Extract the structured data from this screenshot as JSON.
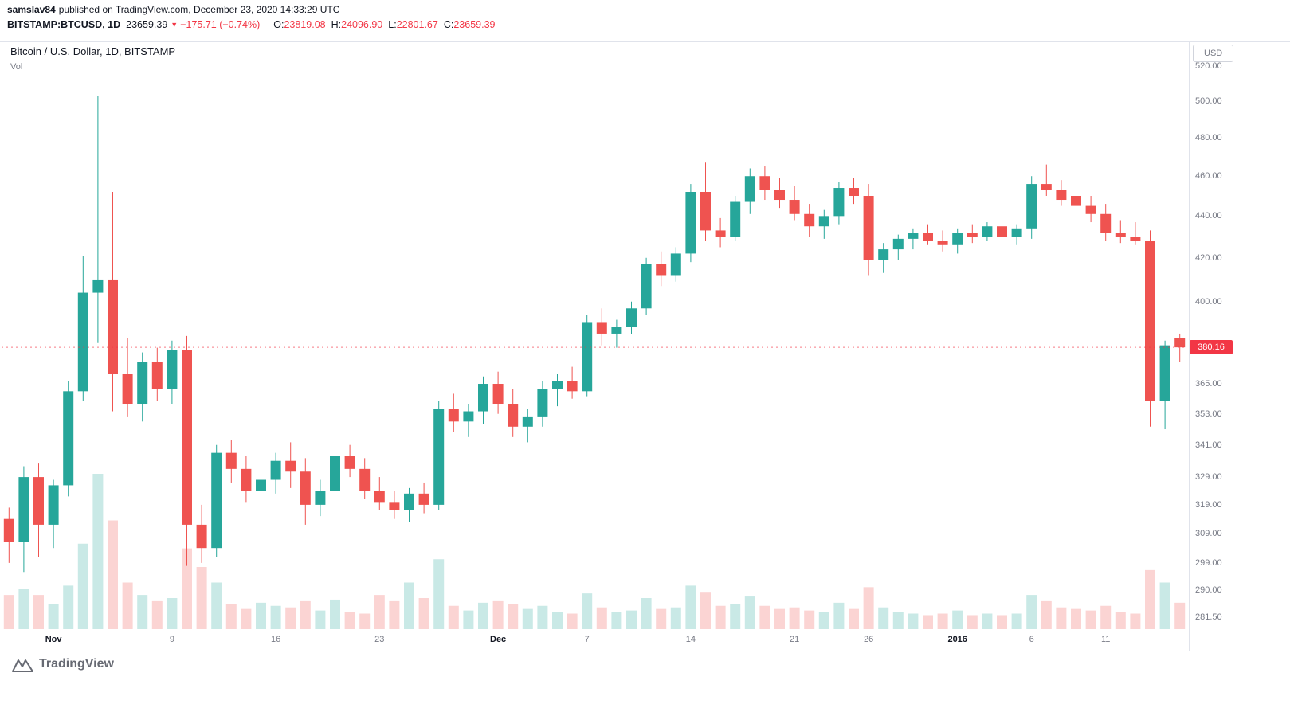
{
  "header": {
    "author": "samslav84",
    "published": "published on TradingView.com, December 23, 2020 14:33:29 UTC",
    "symbol": "BITSTAMP:BTCUSD, 1D",
    "last_price": "23659.39",
    "change": "−175.71 (−0.74%)",
    "ohlc": {
      "o_label": "O:",
      "o": "23819.08",
      "h_label": "H:",
      "h": "24096.90",
      "l_label": "L:",
      "l": "22801.67",
      "c_label": "C:",
      "c": "23659.39"
    }
  },
  "legend": {
    "title": "Bitcoin / U.S. Dollar, 1D, BITSTAMP",
    "volume_label": "Vol"
  },
  "axis": {
    "currency_button": "USD",
    "last_price_badge": {
      "label": "380.16",
      "value": 380.16
    },
    "price_ticks": [
      {
        "label": "520.00",
        "value": 520
      },
      {
        "label": "500.00",
        "value": 500
      },
      {
        "label": "480.00",
        "value": 480
      },
      {
        "label": "460.00",
        "value": 460
      },
      {
        "label": "440.00",
        "value": 440
      },
      {
        "label": "420.00",
        "value": 420
      },
      {
        "label": "400.00",
        "value": 400
      },
      {
        "label": "365.00",
        "value": 365
      },
      {
        "label": "353.00",
        "value": 353
      },
      {
        "label": "341.00",
        "value": 341
      },
      {
        "label": "329.00",
        "value": 329
      },
      {
        "label": "319.00",
        "value": 319
      },
      {
        "label": "309.00",
        "value": 309
      },
      {
        "label": "299.00",
        "value": 299
      },
      {
        "label": "290.00",
        "value": 290
      },
      {
        "label": "281.50",
        "value": 281.5
      }
    ],
    "time_labels": [
      {
        "index": 3,
        "label": "Nov",
        "bold": true
      },
      {
        "index": 11,
        "label": "9",
        "bold": false
      },
      {
        "index": 18,
        "label": "16",
        "bold": false
      },
      {
        "index": 25,
        "label": "23",
        "bold": false
      },
      {
        "index": 33,
        "label": "Dec",
        "bold": true
      },
      {
        "index": 39,
        "label": "7",
        "bold": false
      },
      {
        "index": 46,
        "label": "14",
        "bold": false
      },
      {
        "index": 53,
        "label": "21",
        "bold": false
      },
      {
        "index": 58,
        "label": "26",
        "bold": false
      },
      {
        "index": 64,
        "label": "2016",
        "bold": true
      },
      {
        "index": 69,
        "label": "6",
        "bold": false
      },
      {
        "index": 74,
        "label": "11",
        "bold": false
      }
    ]
  },
  "footer": {
    "brand": "TradingView"
  },
  "colors": {
    "up": "#26a69a",
    "down": "#ef5350",
    "red": "#f23645",
    "badge": "#f23645",
    "border": "#e0e3eb",
    "axis_text": "#787b86"
  },
  "chart_data": {
    "type": "candlestick",
    "symbol": "BTCUSD",
    "exchange": "BITSTAMP",
    "interval": "1D",
    "title": "Bitcoin / U.S. Dollar, 1D, BITSTAMP",
    "y_axis": {
      "scale": "log",
      "unit": "USD",
      "visible_range": [
        277,
        534
      ]
    },
    "start_date": "2015-10-29",
    "end_date": "2016-01-16",
    "last_price": 380.16,
    "note": "candles are [open, high, low, close, relative_volume_0_100]; values estimated from chart",
    "candles": [
      [
        314,
        318,
        299,
        306,
        22
      ],
      [
        306,
        333,
        296,
        329,
        26
      ],
      [
        329,
        334,
        301,
        312,
        22
      ],
      [
        312,
        328,
        304,
        326,
        16
      ],
      [
        326,
        366,
        322,
        362,
        28
      ],
      [
        362,
        421,
        358,
        404,
        55
      ],
      [
        404,
        503,
        382,
        410,
        100
      ],
      [
        410,
        452,
        354,
        369,
        70
      ],
      [
        369,
        384,
        352,
        357,
        30
      ],
      [
        357,
        378,
        350,
        374,
        22
      ],
      [
        374,
        380,
        358,
        363,
        18
      ],
      [
        363,
        383,
        357,
        379,
        20
      ],
      [
        379,
        385,
        298,
        312,
        52
      ],
      [
        312,
        319,
        299,
        304,
        40
      ],
      [
        304,
        341,
        301,
        338,
        30
      ],
      [
        338,
        343,
        327,
        332,
        16
      ],
      [
        332,
        337,
        320,
        324,
        13
      ],
      [
        324,
        331,
        306,
        328,
        17
      ],
      [
        328,
        338,
        323,
        335,
        15
      ],
      [
        335,
        342,
        325,
        331,
        14
      ],
      [
        331,
        336,
        312,
        319,
        18
      ],
      [
        319,
        328,
        315,
        324,
        12
      ],
      [
        324,
        340,
        317,
        337,
        19
      ],
      [
        337,
        341,
        329,
        332,
        11
      ],
      [
        332,
        336,
        321,
        324,
        10
      ],
      [
        324,
        329,
        317,
        320,
        22
      ],
      [
        320,
        324,
        314,
        317,
        18
      ],
      [
        317,
        325,
        313,
        323,
        30
      ],
      [
        323,
        327,
        316,
        319,
        20
      ],
      [
        319,
        358,
        317,
        355,
        45
      ],
      [
        355,
        361,
        346,
        350,
        15
      ],
      [
        350,
        357,
        344,
        354,
        12
      ],
      [
        354,
        368,
        349,
        365,
        17
      ],
      [
        365,
        370,
        353,
        357,
        18
      ],
      [
        357,
        363,
        344,
        348,
        16
      ],
      [
        348,
        355,
        342,
        352,
        13
      ],
      [
        352,
        366,
        348,
        363,
        15
      ],
      [
        363,
        369,
        356,
        366,
        11
      ],
      [
        366,
        372,
        359,
        362,
        10
      ],
      [
        362,
        394,
        360,
        391,
        23
      ],
      [
        391,
        397,
        381,
        386,
        14
      ],
      [
        386,
        392,
        380,
        389,
        11
      ],
      [
        389,
        400,
        386,
        397,
        12
      ],
      [
        397,
        420,
        394,
        417,
        20
      ],
      [
        417,
        423,
        407,
        412,
        13
      ],
      [
        412,
        425,
        409,
        422,
        14
      ],
      [
        422,
        456,
        418,
        452,
        28
      ],
      [
        452,
        467,
        428,
        433,
        24
      ],
      [
        433,
        439,
        425,
        430,
        15
      ],
      [
        430,
        450,
        428,
        447,
        16
      ],
      [
        447,
        464,
        441,
        460,
        21
      ],
      [
        460,
        465,
        448,
        453,
        15
      ],
      [
        453,
        459,
        444,
        448,
        13
      ],
      [
        448,
        455,
        438,
        441,
        14
      ],
      [
        441,
        446,
        430,
        435,
        12
      ],
      [
        435,
        443,
        429,
        440,
        11
      ],
      [
        440,
        457,
        436,
        454,
        17
      ],
      [
        454,
        459,
        446,
        450,
        13
      ],
      [
        450,
        456,
        412,
        419,
        27
      ],
      [
        419,
        427,
        413,
        424,
        14
      ],
      [
        424,
        431,
        419,
        429,
        11
      ],
      [
        429,
        434,
        424,
        432,
        10
      ],
      [
        432,
        436,
        426,
        428,
        9
      ],
      [
        428,
        433,
        423,
        426,
        10
      ],
      [
        426,
        434,
        422,
        432,
        12
      ],
      [
        432,
        436,
        427,
        430,
        9
      ],
      [
        430,
        437,
        428,
        435,
        10
      ],
      [
        435,
        438,
        427,
        430,
        9
      ],
      [
        430,
        436,
        426,
        434,
        10
      ],
      [
        434,
        460,
        429,
        456,
        22
      ],
      [
        456,
        466,
        450,
        453,
        18
      ],
      [
        453,
        458,
        445,
        448,
        14
      ],
      [
        450,
        459,
        442,
        445,
        13
      ],
      [
        445,
        450,
        437,
        441,
        12
      ],
      [
        441,
        446,
        428,
        432,
        15
      ],
      [
        432,
        438,
        427,
        430,
        11
      ],
      [
        430,
        437,
        426,
        428,
        10
      ],
      [
        428,
        433,
        348,
        358,
        38
      ],
      [
        358,
        383,
        347,
        381,
        30
      ],
      [
        384,
        386,
        374,
        380.16,
        17
      ]
    ]
  }
}
